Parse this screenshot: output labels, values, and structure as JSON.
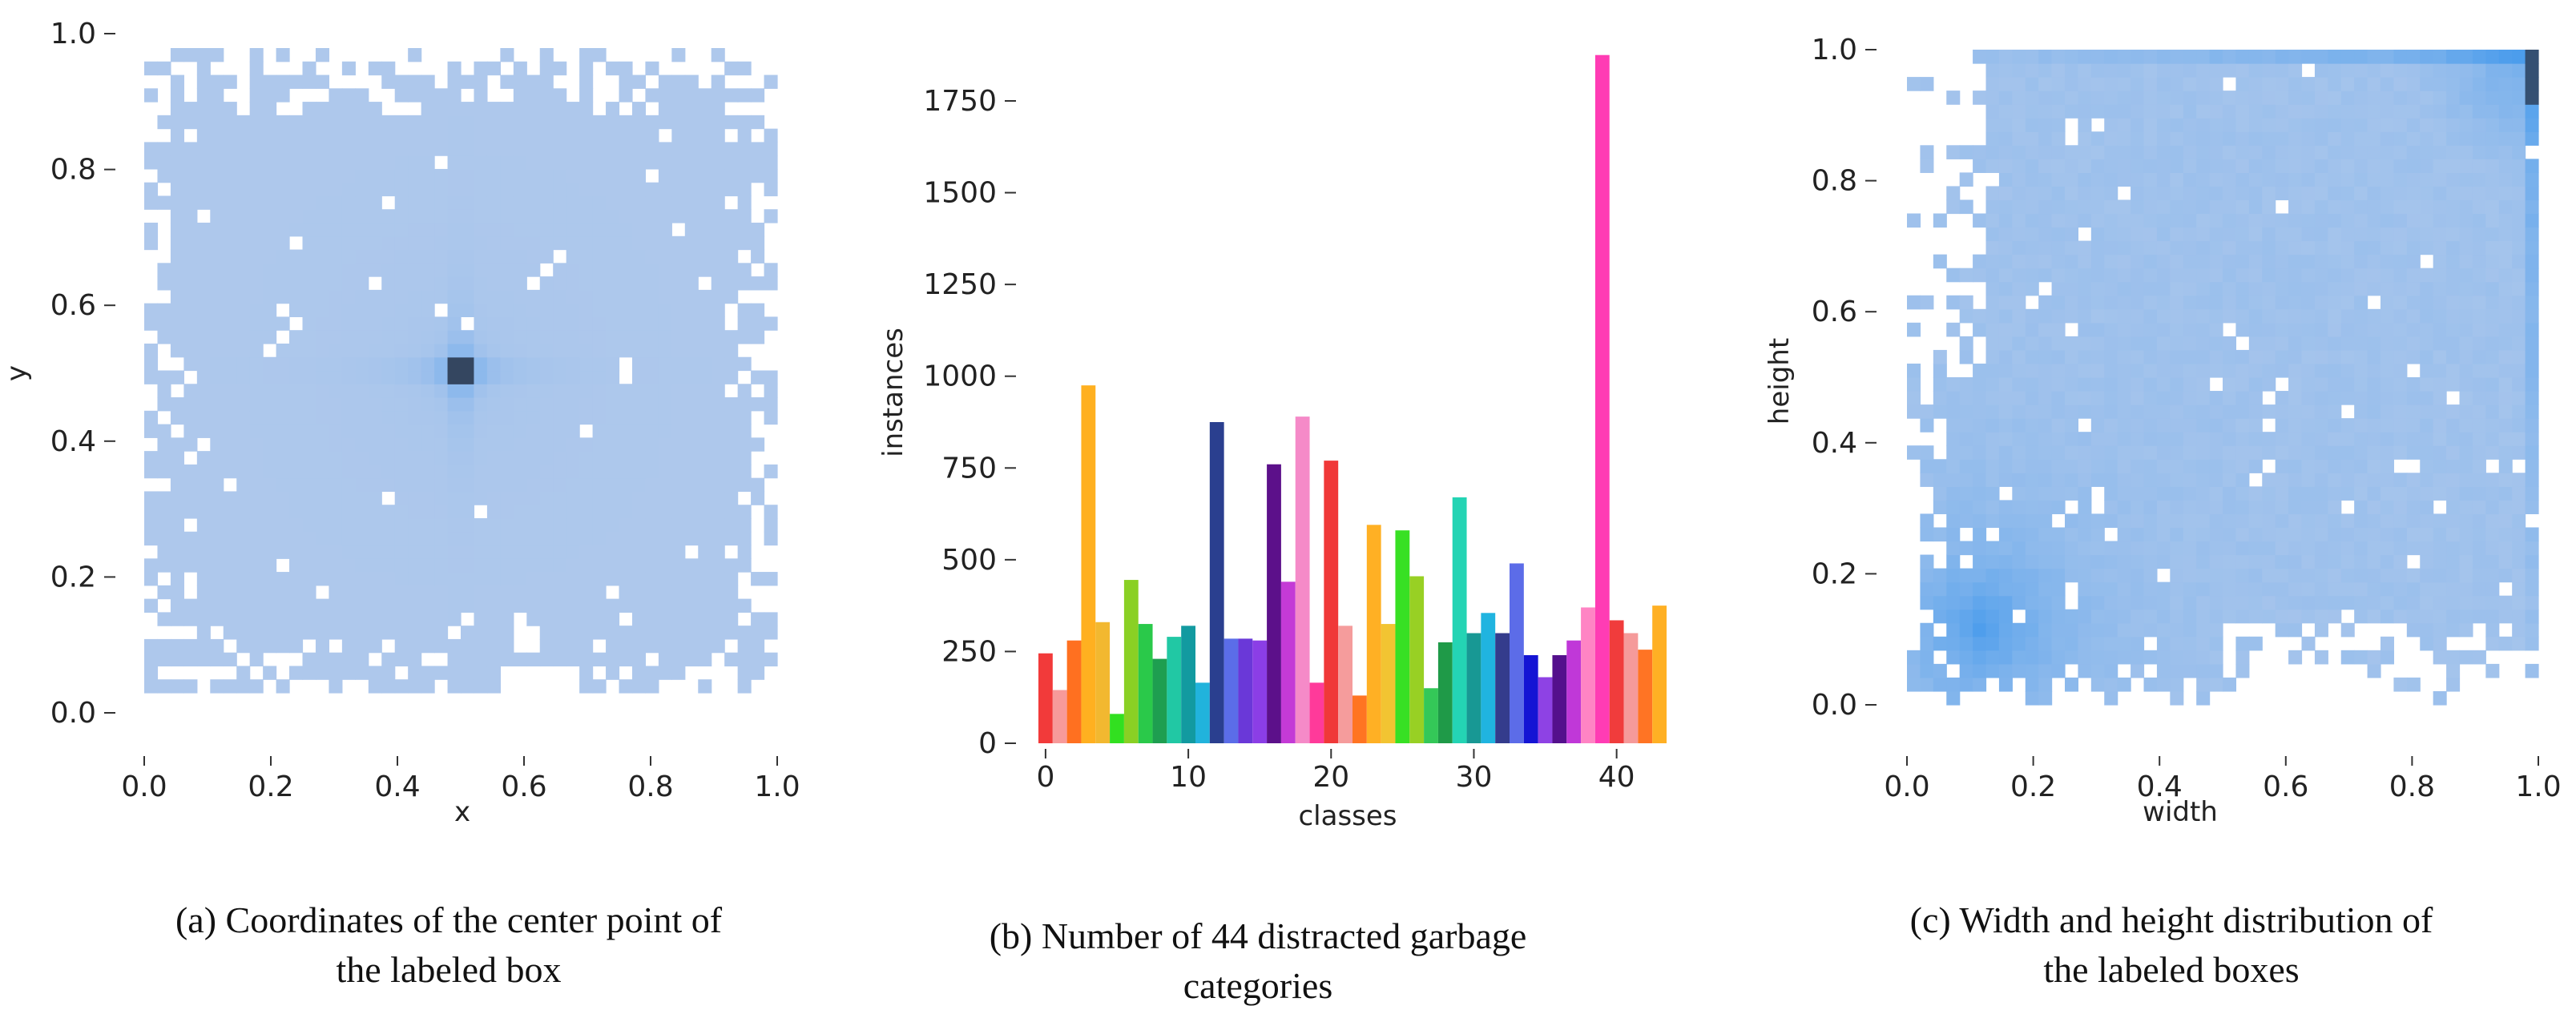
{
  "chart_data": [
    {
      "type": "heatmap",
      "title": "",
      "xlabel": "x",
      "ylabel": "y",
      "xlim": [
        0.0,
        1.0
      ],
      "ylim": [
        0.0,
        1.0
      ],
      "xticks": [
        "0.0",
        "0.2",
        "0.4",
        "0.6",
        "0.8",
        "1.0"
      ],
      "yticks": [
        "0.0",
        "0.2",
        "0.4",
        "0.6",
        "0.8",
        "1.0"
      ],
      "description_points": {
        "peak_x": 0.5,
        "peak_y": 0.5
      },
      "caption": "(a) Coordinates of the center point of\nthe labeled box"
    },
    {
      "type": "bar",
      "title": "",
      "xlabel": "classes",
      "ylabel": "instances",
      "ylim": [
        0,
        1900
      ],
      "xticks": [
        "0",
        "10",
        "20",
        "30",
        "40"
      ],
      "yticks": [
        "0",
        "250",
        "500",
        "750",
        "1000",
        "1250",
        "1500",
        "1750"
      ],
      "categories": [
        0,
        1,
        2,
        3,
        4,
        5,
        6,
        7,
        8,
        9,
        10,
        11,
        12,
        13,
        14,
        15,
        16,
        17,
        18,
        19,
        20,
        21,
        22,
        23,
        24,
        25,
        26,
        27,
        28,
        29,
        30,
        31,
        32,
        33,
        34,
        35,
        36,
        37,
        38,
        39,
        40,
        41,
        42,
        43
      ],
      "values": [
        245,
        145,
        280,
        975,
        330,
        80,
        445,
        325,
        230,
        290,
        320,
        165,
        875,
        285,
        285,
        280,
        760,
        440,
        890,
        165,
        770,
        320,
        130,
        595,
        325,
        580,
        455,
        150,
        275,
        670,
        300,
        355,
        300,
        490,
        240,
        180,
        240,
        280,
        370,
        1875,
        335,
        300,
        255,
        375
      ],
      "colors": [
        "#f23a3a",
        "#f79a9a",
        "#ff7020",
        "#ffb020",
        "#f2b830",
        "#32e020",
        "#8ad024",
        "#2ac94a",
        "#1e9e50",
        "#21c8a4",
        "#129aa0",
        "#21b3dc",
        "#2a3f8f",
        "#5b6de8",
        "#6a38d8",
        "#8b3ee6",
        "#5c108a",
        "#c43ad6",
        "#f58ac8",
        "#ff3a9a",
        "#f03838",
        "#f59c9c",
        "#ff7422",
        "#ffb024",
        "#f2c432",
        "#38e024",
        "#98d024",
        "#34c858",
        "#1f9a48",
        "#24d4b4",
        "#189894",
        "#20b4e0",
        "#343c8c",
        "#5c6ce8",
        "#1414d4",
        "#8e42e4",
        "#54108c",
        "#c038d8",
        "#ff84c4",
        "#ff3cb4",
        "#f03c3c",
        "#f59a9a",
        "#ff7424",
        "#ffb024"
      ],
      "caption": "(b) Number of 44 distracted garbage\ncategories"
    },
    {
      "type": "heatmap",
      "title": "",
      "xlabel": "width",
      "ylabel": "height",
      "xlim": [
        0.0,
        1.0
      ],
      "ylim": [
        0.0,
        1.0
      ],
      "xticks": [
        "0.0",
        "0.2",
        "0.4",
        "0.6",
        "0.8",
        "1.0"
      ],
      "yticks": [
        "0.0",
        "0.2",
        "0.4",
        "0.6",
        "0.8",
        "1.0"
      ],
      "caption": "(c) Width and height distribution of\nthe labeled boxes"
    }
  ]
}
